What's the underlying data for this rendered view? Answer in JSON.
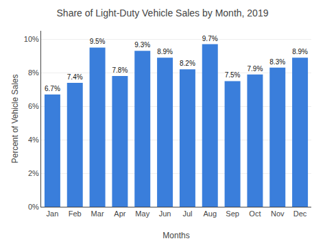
{
  "chart_data": {
    "type": "bar",
    "title": "Share of Light-Duty Vehicle Sales by Month, 2019",
    "x_label": "Months",
    "y_label": "Percent of Vehicle Sales",
    "categories": [
      "Jan",
      "Feb",
      "Mar",
      "Apr",
      "May",
      "Jun",
      "Jul",
      "Aug",
      "Sep",
      "Oct",
      "Nov",
      "Dec"
    ],
    "values": [
      6.7,
      7.4,
      9.5,
      7.8,
      9.3,
      8.9,
      8.2,
      9.7,
      7.5,
      7.9,
      8.3,
      8.9
    ],
    "value_labels": [
      "6.7%",
      "7.4%",
      "9.5%",
      "7.8%",
      "9.3%",
      "8.9%",
      "8.2%",
      "9.7%",
      "7.5%",
      "7.9%",
      "8.3%",
      "8.9%"
    ],
    "color": "#3a7edb",
    "ylim": [
      0,
      10.5
    ],
    "yticks": [
      {
        "value": 0,
        "label": "0%"
      },
      {
        "value": 2,
        "label": "2%"
      },
      {
        "value": 4,
        "label": "4%"
      },
      {
        "value": 6,
        "label": "6%"
      },
      {
        "value": 8,
        "label": "8%"
      },
      {
        "value": 10,
        "label": "10%"
      }
    ],
    "grid": true,
    "data_labels": true
  }
}
